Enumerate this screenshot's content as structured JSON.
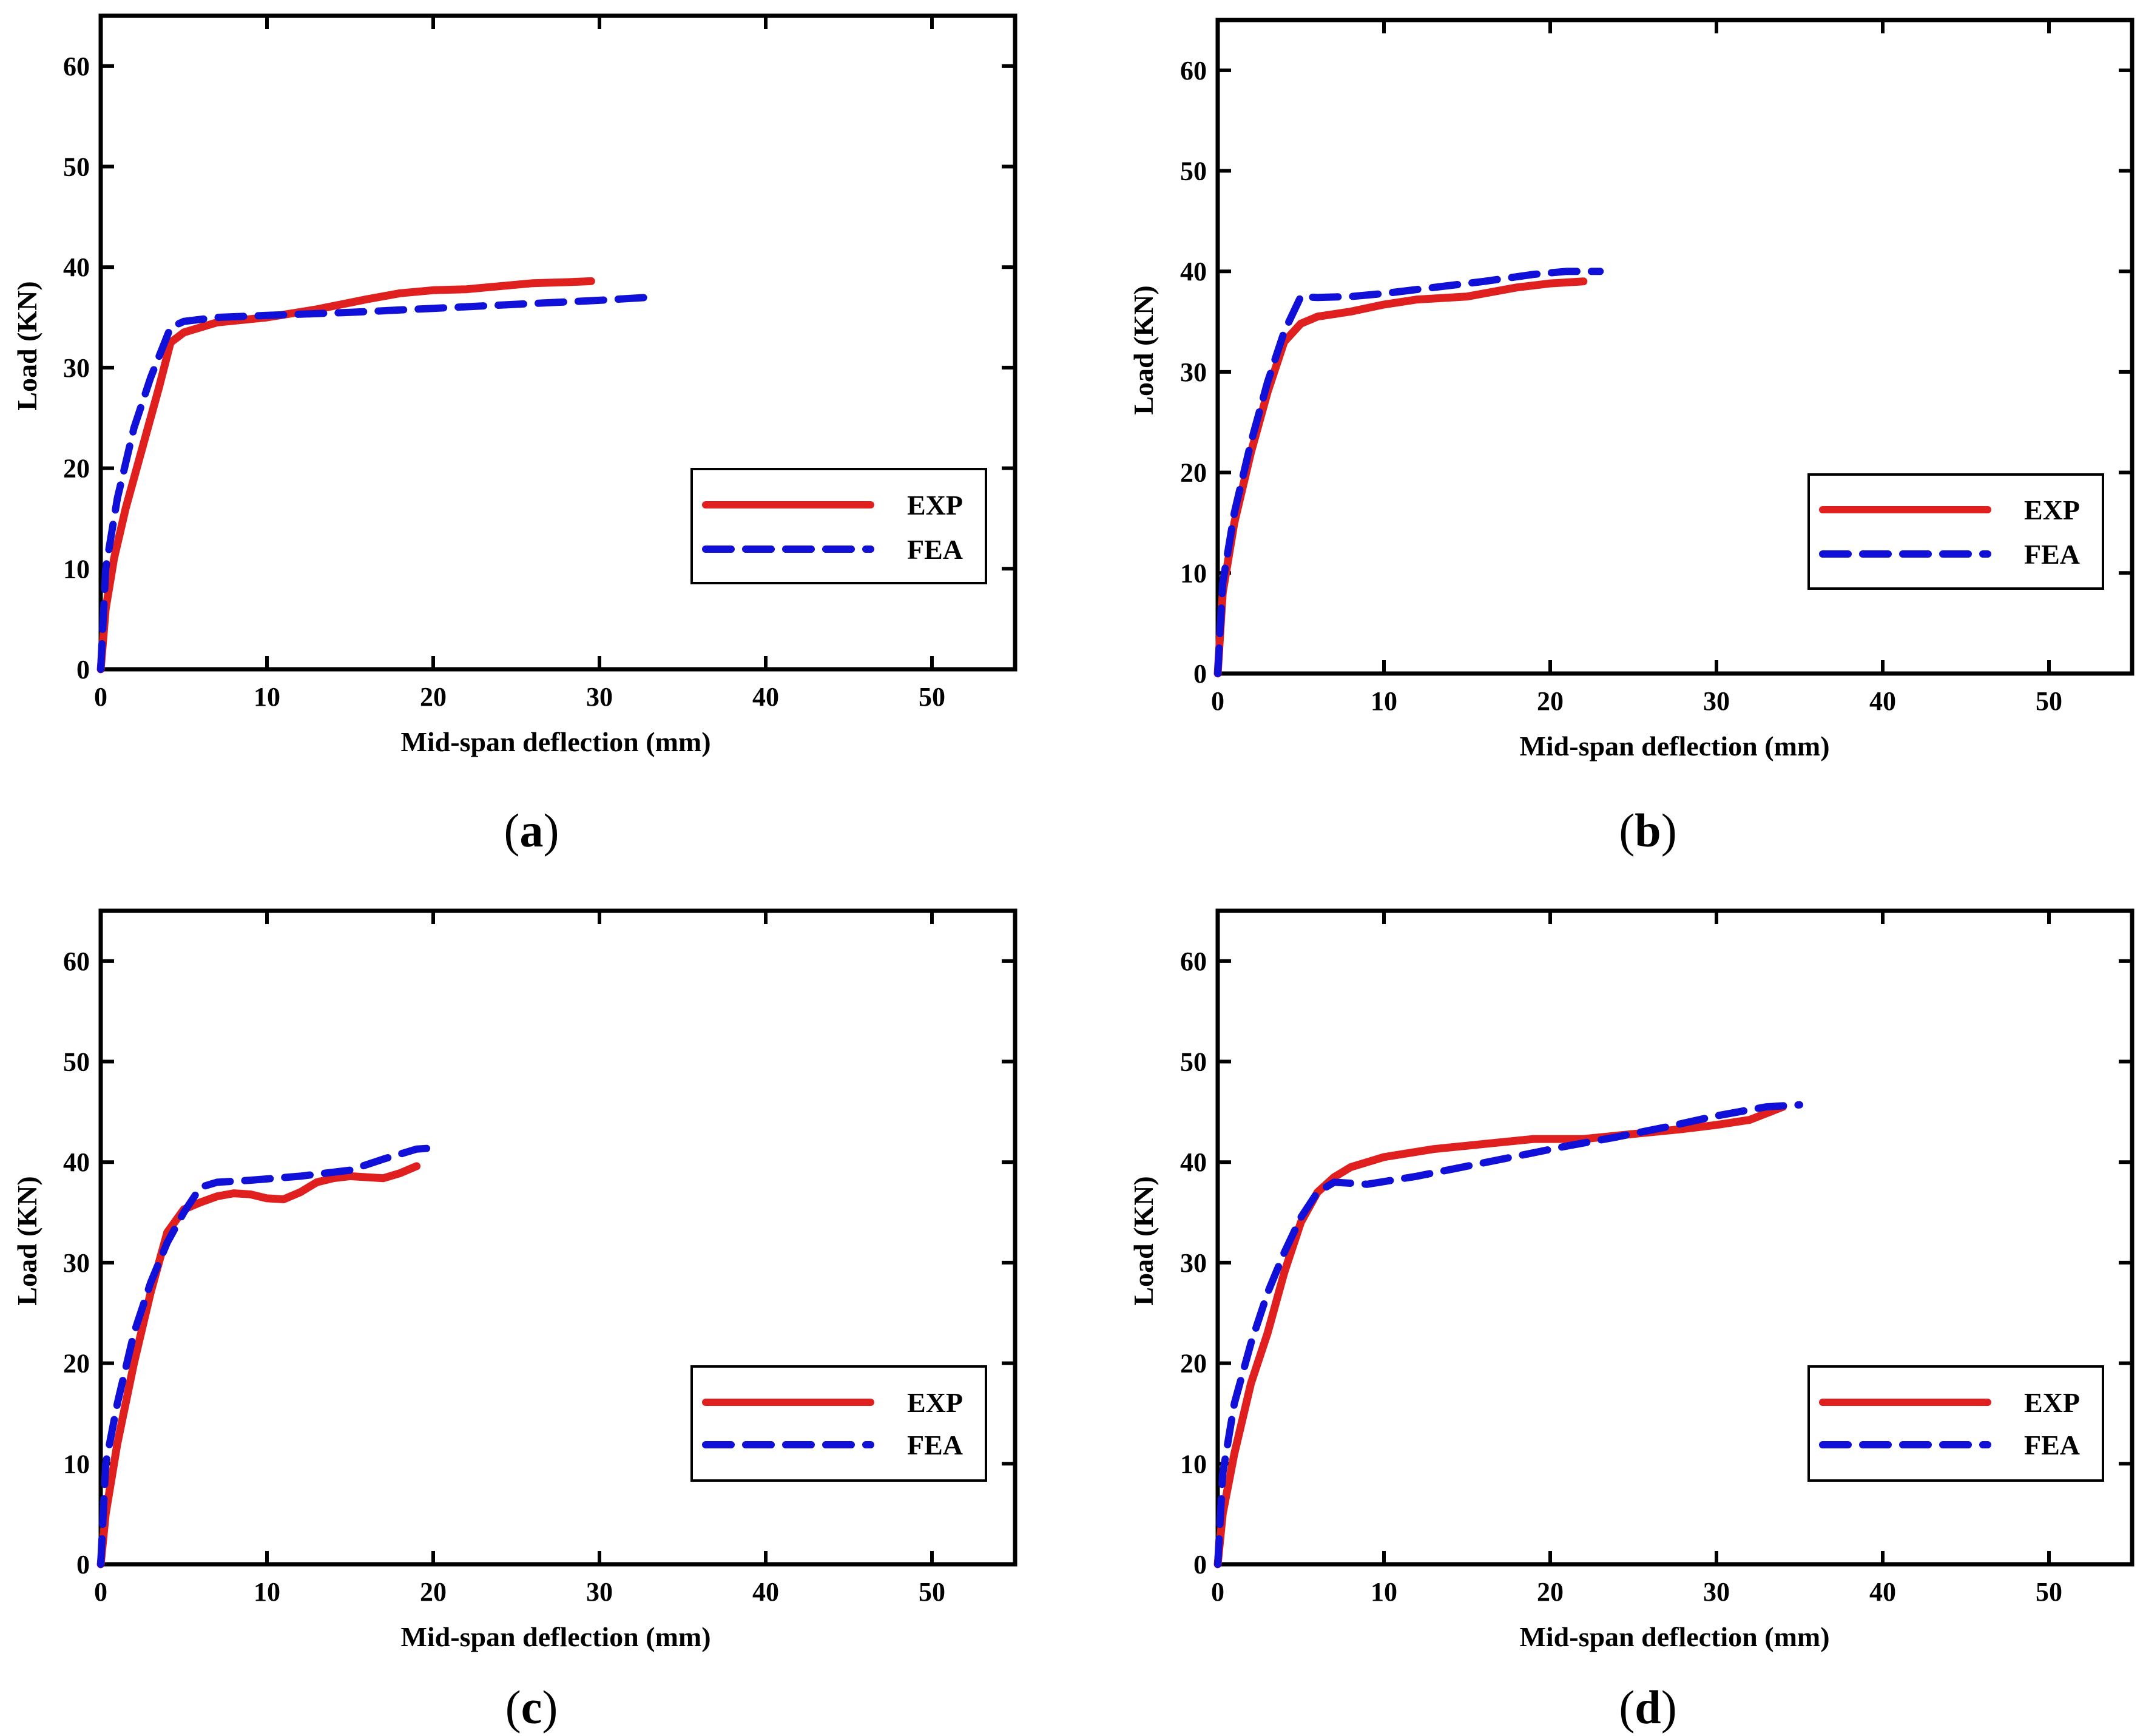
{
  "figure": {
    "colors": {
      "exp": "#e0201f",
      "fea": "#1010d8",
      "axis": "#000000"
    }
  },
  "chart_data": [
    {
      "type": "line",
      "panel": "a",
      "caption": {
        "open": "(",
        "letter": "a",
        "close": ")"
      },
      "xlabel": "Mid-span deflection (mm)",
      "ylabel": "Load (KN)",
      "xlim": [
        0,
        55
      ],
      "ylim": [
        0,
        65
      ],
      "xticks": [
        0,
        10,
        20,
        30,
        40,
        50
      ],
      "yticks": [
        0,
        10,
        20,
        30,
        40,
        50,
        60
      ],
      "legend_position": "lower-right",
      "series": [
        {
          "name": "EXP",
          "style": "solid",
          "x": [
            0,
            0.3,
            0.8,
            1.5,
            2.5,
            3.5,
            4.2,
            5,
            7,
            10,
            13,
            16,
            18,
            20,
            22,
            24,
            26,
            28,
            29.5
          ],
          "y": [
            0,
            6,
            11,
            16,
            22,
            28,
            32.5,
            33.5,
            34.5,
            35,
            35.8,
            36.8,
            37.4,
            37.7,
            37.8,
            38.1,
            38.4,
            38.5,
            38.6
          ]
        },
        {
          "name": "FEA",
          "style": "dashed",
          "x": [
            0,
            0.3,
            1,
            2,
            3,
            4.2,
            5,
            7,
            10,
            15,
            20,
            25,
            30,
            33
          ],
          "y": [
            0,
            10,
            17,
            24,
            29,
            34,
            34.6,
            35,
            35.2,
            35.5,
            35.9,
            36.3,
            36.7,
            37
          ]
        }
      ]
    },
    {
      "type": "line",
      "panel": "b",
      "caption": {
        "open": "(",
        "letter": "b",
        "close": ")"
      },
      "xlabel": "Mid-span deflection (mm)",
      "ylabel": "Load (KN)",
      "xlim": [
        0,
        55
      ],
      "ylim": [
        0,
        65
      ],
      "xticks": [
        0,
        10,
        20,
        30,
        40,
        50
      ],
      "yticks": [
        0,
        10,
        20,
        30,
        40,
        50,
        60
      ],
      "legend_position": "lower-right",
      "series": [
        {
          "name": "EXP",
          "style": "solid",
          "x": [
            0,
            0.3,
            1,
            2,
            3,
            4,
            5,
            6,
            8,
            10,
            12,
            15,
            18,
            20,
            22
          ],
          "y": [
            0,
            8,
            15,
            22,
            28,
            33,
            34.8,
            35.5,
            36,
            36.7,
            37.2,
            37.5,
            38.4,
            38.8,
            39
          ]
        },
        {
          "name": "FEA",
          "style": "dashed",
          "x": [
            0,
            0.3,
            1,
            2,
            3,
            4,
            5,
            6,
            8,
            10,
            13,
            16,
            19,
            21,
            23
          ],
          "y": [
            0,
            9,
            16,
            23,
            29,
            34,
            37.5,
            37.4,
            37.5,
            37.8,
            38.4,
            39,
            39.7,
            40,
            40
          ]
        }
      ]
    },
    {
      "type": "line",
      "panel": "c",
      "caption": {
        "open": "(",
        "letter": "c",
        "close": ")"
      },
      "xlabel": "Mid-span deflection (mm)",
      "ylabel": "Load (KN)",
      "xlim": [
        0,
        55
      ],
      "ylim": [
        0,
        65
      ],
      "xticks": [
        0,
        10,
        20,
        30,
        40,
        50
      ],
      "yticks": [
        0,
        10,
        20,
        30,
        40,
        50,
        60
      ],
      "legend_position": "lower-right",
      "series": [
        {
          "name": "EXP",
          "style": "solid",
          "x": [
            0,
            0.3,
            1,
            2,
            3,
            4,
            5,
            6,
            7,
            8,
            9,
            10,
            11,
            12,
            13,
            14,
            15,
            16,
            17,
            18,
            19
          ],
          "y": [
            0,
            5,
            12,
            20,
            27,
            33,
            35.3,
            36,
            36.6,
            36.9,
            36.8,
            36.4,
            36.3,
            37,
            38,
            38.4,
            38.6,
            38.5,
            38.4,
            38.9,
            39.6
          ]
        },
        {
          "name": "FEA",
          "style": "dashed",
          "x": [
            0,
            0.3,
            1,
            2,
            3,
            4,
            5,
            6,
            7,
            9,
            12,
            15,
            17,
            19,
            20
          ],
          "y": [
            0,
            10,
            16,
            23,
            28,
            32,
            35,
            37.5,
            38,
            38.2,
            38.6,
            39.2,
            40.3,
            41.3,
            41.4
          ]
        }
      ]
    },
    {
      "type": "line",
      "panel": "d",
      "caption": {
        "open": "(",
        "letter": "d",
        "close": ")"
      },
      "xlabel": "Mid-span deflection (mm)",
      "ylabel": "Load (KN)",
      "xlim": [
        0,
        55
      ],
      "ylim": [
        0,
        65
      ],
      "xticks": [
        0,
        10,
        20,
        30,
        40,
        50
      ],
      "yticks": [
        0,
        10,
        20,
        30,
        40,
        50,
        60
      ],
      "legend_position": "lower-right",
      "series": [
        {
          "name": "EXP",
          "style": "solid",
          "x": [
            0,
            0.3,
            1,
            2,
            3,
            4,
            5,
            6,
            7,
            8,
            10,
            13,
            16,
            19,
            22,
            25,
            28,
            30,
            32,
            34
          ],
          "y": [
            0,
            5,
            11,
            18,
            23,
            29,
            34,
            37,
            38.5,
            39.5,
            40.5,
            41.3,
            41.8,
            42.3,
            42.3,
            42.8,
            43.3,
            43.7,
            44.2,
            45.5
          ]
        },
        {
          "name": "FEA",
          "style": "dashed",
          "x": [
            0,
            0.3,
            1,
            2,
            3,
            4,
            5,
            6,
            7,
            9,
            12,
            15,
            18,
            21,
            24,
            27,
            30,
            33,
            35
          ],
          "y": [
            0,
            9,
            16,
            22,
            27,
            31,
            34.5,
            37,
            38,
            37.8,
            38.6,
            39.6,
            40.6,
            41.6,
            42.5,
            43.5,
            44.6,
            45.5,
            45.7
          ]
        }
      ]
    }
  ]
}
